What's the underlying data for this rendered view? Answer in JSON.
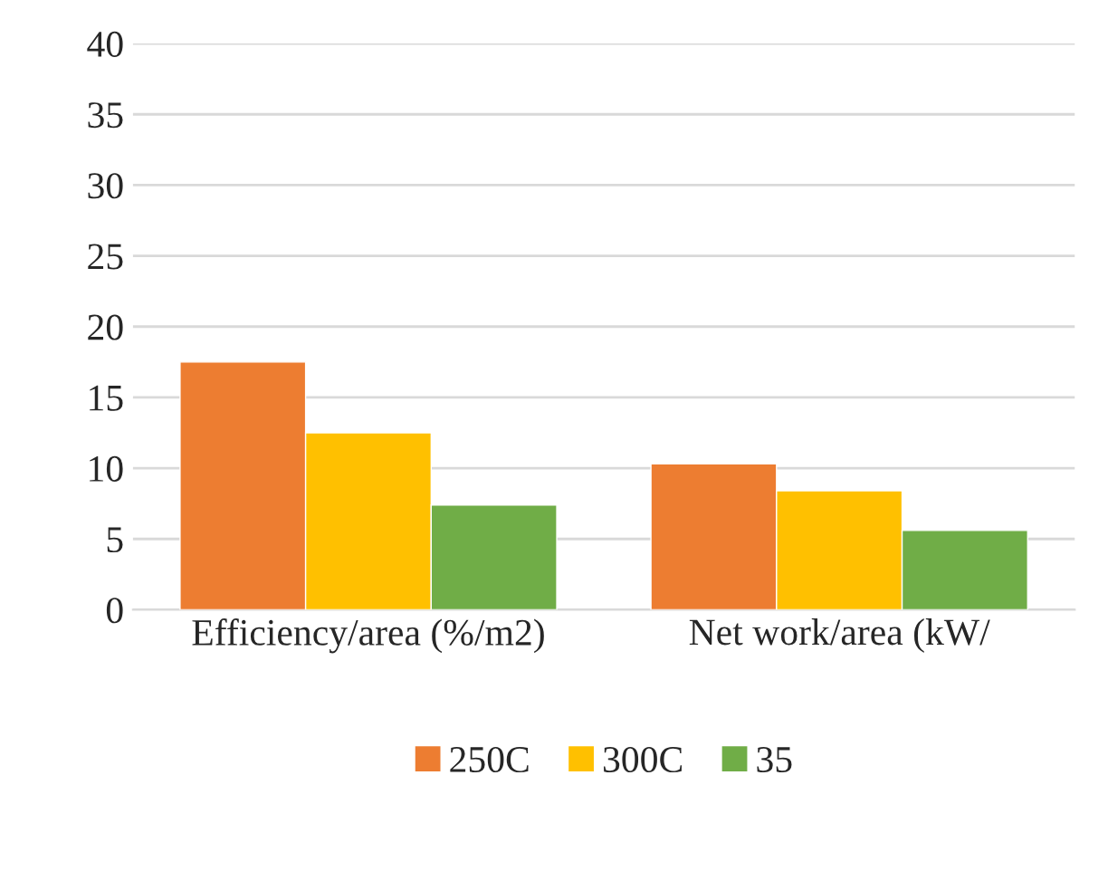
{
  "chart_data": {
    "type": "bar",
    "categories": [
      "Efficiency/area (%/m2)",
      "Net work/area (kW/"
    ],
    "series": [
      {
        "name": "250C",
        "color": "#ed7d31",
        "values": [
          17.5,
          10.3
        ]
      },
      {
        "name": "300C",
        "color": "#ffc000",
        "values": [
          12.5,
          8.4
        ]
      },
      {
        "name": "35",
        "color": "#70ad47",
        "values": [
          7.4,
          5.6
        ]
      }
    ],
    "ylim": [
      0,
      40
    ],
    "yticks": [
      0,
      5,
      10,
      15,
      20,
      25,
      30,
      35,
      40
    ],
    "grid": "y",
    "legend": "bottom"
  }
}
